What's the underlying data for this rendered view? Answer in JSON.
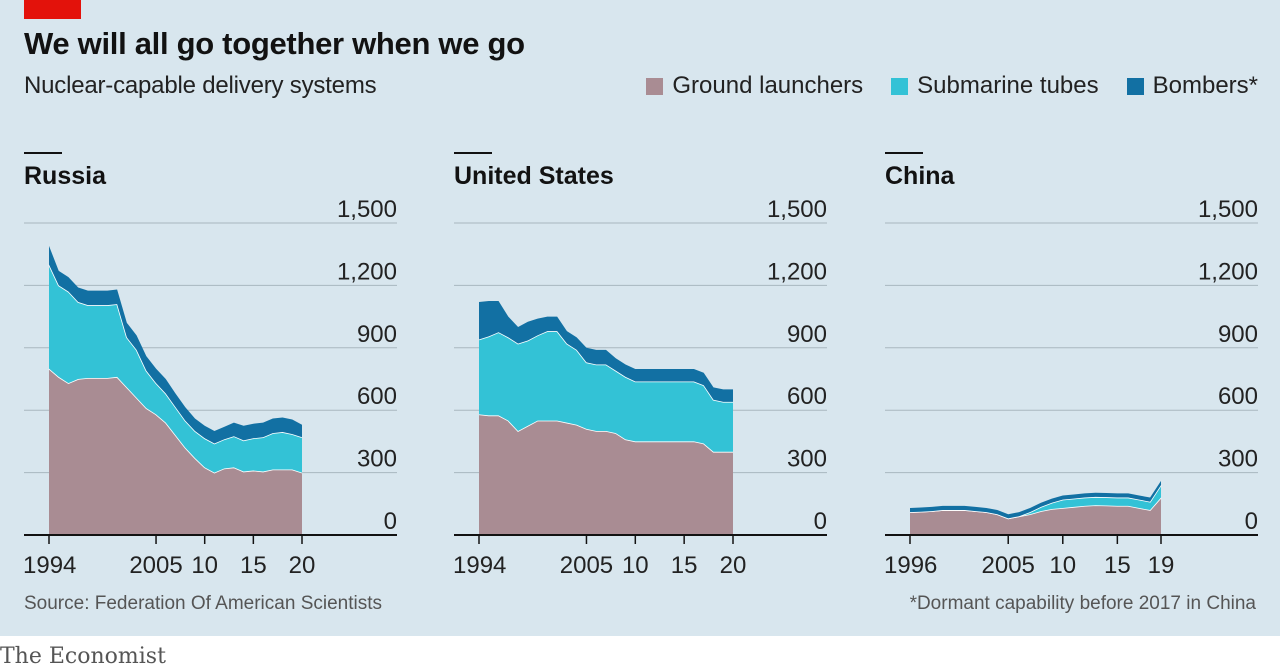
{
  "header": {
    "title": "We will all go together when we go",
    "subtitle": "Nuclear-capable delivery systems"
  },
  "legend": [
    {
      "label": "Ground launchers",
      "color": "#a98c93"
    },
    {
      "label": "Submarine tubes",
      "color": "#33c2d6"
    },
    {
      "label": "Bombers*",
      "color": "#1270a3"
    }
  ],
  "footer": {
    "source": "Source: Federation Of American Scientists",
    "note": "*Dormant capability before 2017 in China"
  },
  "brand": "The Economist",
  "chart_data": [
    {
      "type": "area",
      "stacked": true,
      "title": "Russia",
      "x": [
        1994,
        1995,
        1996,
        1997,
        1998,
        1999,
        2000,
        2001,
        2002,
        2003,
        2004,
        2005,
        2006,
        2007,
        2008,
        2009,
        2010,
        2011,
        2012,
        2013,
        2014,
        2015,
        2016,
        2017,
        2018,
        2019,
        2020
      ],
      "xlim": [
        1994,
        2020
      ],
      "ylim": [
        0,
        1500
      ],
      "yticks": [
        0,
        300,
        600,
        900,
        1200,
        1500
      ],
      "xticks": [
        {
          "value": 1994,
          "label": "1994"
        },
        {
          "value": 2005,
          "label": "2005"
        },
        {
          "value": 2010,
          "label": "10"
        },
        {
          "value": 2015,
          "label": "15"
        },
        {
          "value": 2020,
          "label": "20"
        }
      ],
      "series": [
        {
          "name": "Ground launchers",
          "values": [
            800,
            760,
            730,
            750,
            755,
            755,
            755,
            760,
            710,
            660,
            610,
            580,
            540,
            480,
            420,
            370,
            325,
            300,
            320,
            325,
            305,
            310,
            305,
            315,
            315,
            315,
            300
          ]
        },
        {
          "name": "Submarine tubes",
          "values": [
            500,
            440,
            440,
            370,
            350,
            350,
            350,
            350,
            240,
            230,
            180,
            150,
            140,
            135,
            130,
            130,
            140,
            140,
            140,
            150,
            150,
            155,
            165,
            175,
            180,
            170,
            170
          ]
        },
        {
          "name": "Bombers*",
          "values": [
            90,
            70,
            70,
            70,
            70,
            70,
            70,
            70,
            70,
            70,
            70,
            70,
            70,
            65,
            65,
            60,
            60,
            60,
            60,
            65,
            70,
            70,
            70,
            70,
            70,
            70,
            60
          ]
        }
      ]
    },
    {
      "type": "area",
      "stacked": true,
      "title": "United States",
      "x": [
        1994,
        1995,
        1996,
        1997,
        1998,
        1999,
        2000,
        2001,
        2002,
        2003,
        2004,
        2005,
        2006,
        2007,
        2008,
        2009,
        2010,
        2011,
        2012,
        2013,
        2014,
        2015,
        2016,
        2017,
        2018,
        2019,
        2020
      ],
      "xlim": [
        1994,
        2020
      ],
      "ylim": [
        0,
        1500
      ],
      "yticks": [
        0,
        300,
        600,
        900,
        1200,
        1500
      ],
      "xticks": [
        {
          "value": 1994,
          "label": "1994"
        },
        {
          "value": 2005,
          "label": "2005"
        },
        {
          "value": 2010,
          "label": "10"
        },
        {
          "value": 2015,
          "label": "15"
        },
        {
          "value": 2020,
          "label": "20"
        }
      ],
      "series": [
        {
          "name": "Ground launchers",
          "values": [
            580,
            575,
            575,
            550,
            500,
            525,
            550,
            550,
            550,
            540,
            530,
            510,
            500,
            500,
            490,
            460,
            450,
            450,
            450,
            450,
            450,
            450,
            450,
            440,
            400,
            400,
            400
          ]
        },
        {
          "name": "Submarine tubes",
          "values": [
            360,
            380,
            400,
            400,
            420,
            410,
            410,
            430,
            430,
            380,
            360,
            320,
            320,
            320,
            300,
            300,
            288,
            288,
            288,
            288,
            288,
            288,
            288,
            280,
            250,
            240,
            240
          ]
        },
        {
          "name": "Bombers*",
          "values": [
            180,
            170,
            150,
            100,
            80,
            90,
            80,
            70,
            70,
            60,
            60,
            70,
            70,
            70,
            60,
            60,
            60,
            60,
            60,
            60,
            60,
            60,
            60,
            60,
            60,
            60,
            60
          ]
        }
      ]
    },
    {
      "type": "area",
      "stacked": true,
      "title": "China",
      "x": [
        1996,
        1997,
        1998,
        1999,
        2000,
        2001,
        2002,
        2003,
        2004,
        2005,
        2006,
        2007,
        2008,
        2009,
        2010,
        2011,
        2012,
        2013,
        2014,
        2015,
        2016,
        2017,
        2018,
        2019
      ],
      "xlim": [
        1996,
        2019
      ],
      "ylim": [
        0,
        1500
      ],
      "yticks": [
        0,
        300,
        600,
        900,
        1200,
        1500
      ],
      "xticks": [
        {
          "value": 1996,
          "label": "1996"
        },
        {
          "value": 2005,
          "label": "2005"
        },
        {
          "value": 2010,
          "label": "10"
        },
        {
          "value": 2015,
          "label": "15"
        },
        {
          "value": 2019,
          "label": "19"
        }
      ],
      "series": [
        {
          "name": "Ground launchers",
          "values": [
            110,
            112,
            115,
            120,
            120,
            120,
            115,
            110,
            100,
            80,
            90,
            100,
            115,
            125,
            130,
            135,
            140,
            143,
            142,
            140,
            140,
            130,
            120,
            180
          ]
        },
        {
          "name": "Submarine tubes",
          "values": [
            0,
            0,
            0,
            0,
            0,
            0,
            0,
            0,
            0,
            0,
            0,
            10,
            20,
            30,
            40,
            40,
            40,
            40,
            40,
            40,
            40,
            40,
            40,
            60
          ]
        },
        {
          "name": "Bombers*",
          "values": [
            20,
            20,
            20,
            20,
            20,
            20,
            20,
            20,
            20,
            20,
            20,
            20,
            20,
            20,
            20,
            20,
            20,
            20,
            20,
            20,
            20,
            20,
            20,
            20
          ]
        }
      ]
    }
  ]
}
